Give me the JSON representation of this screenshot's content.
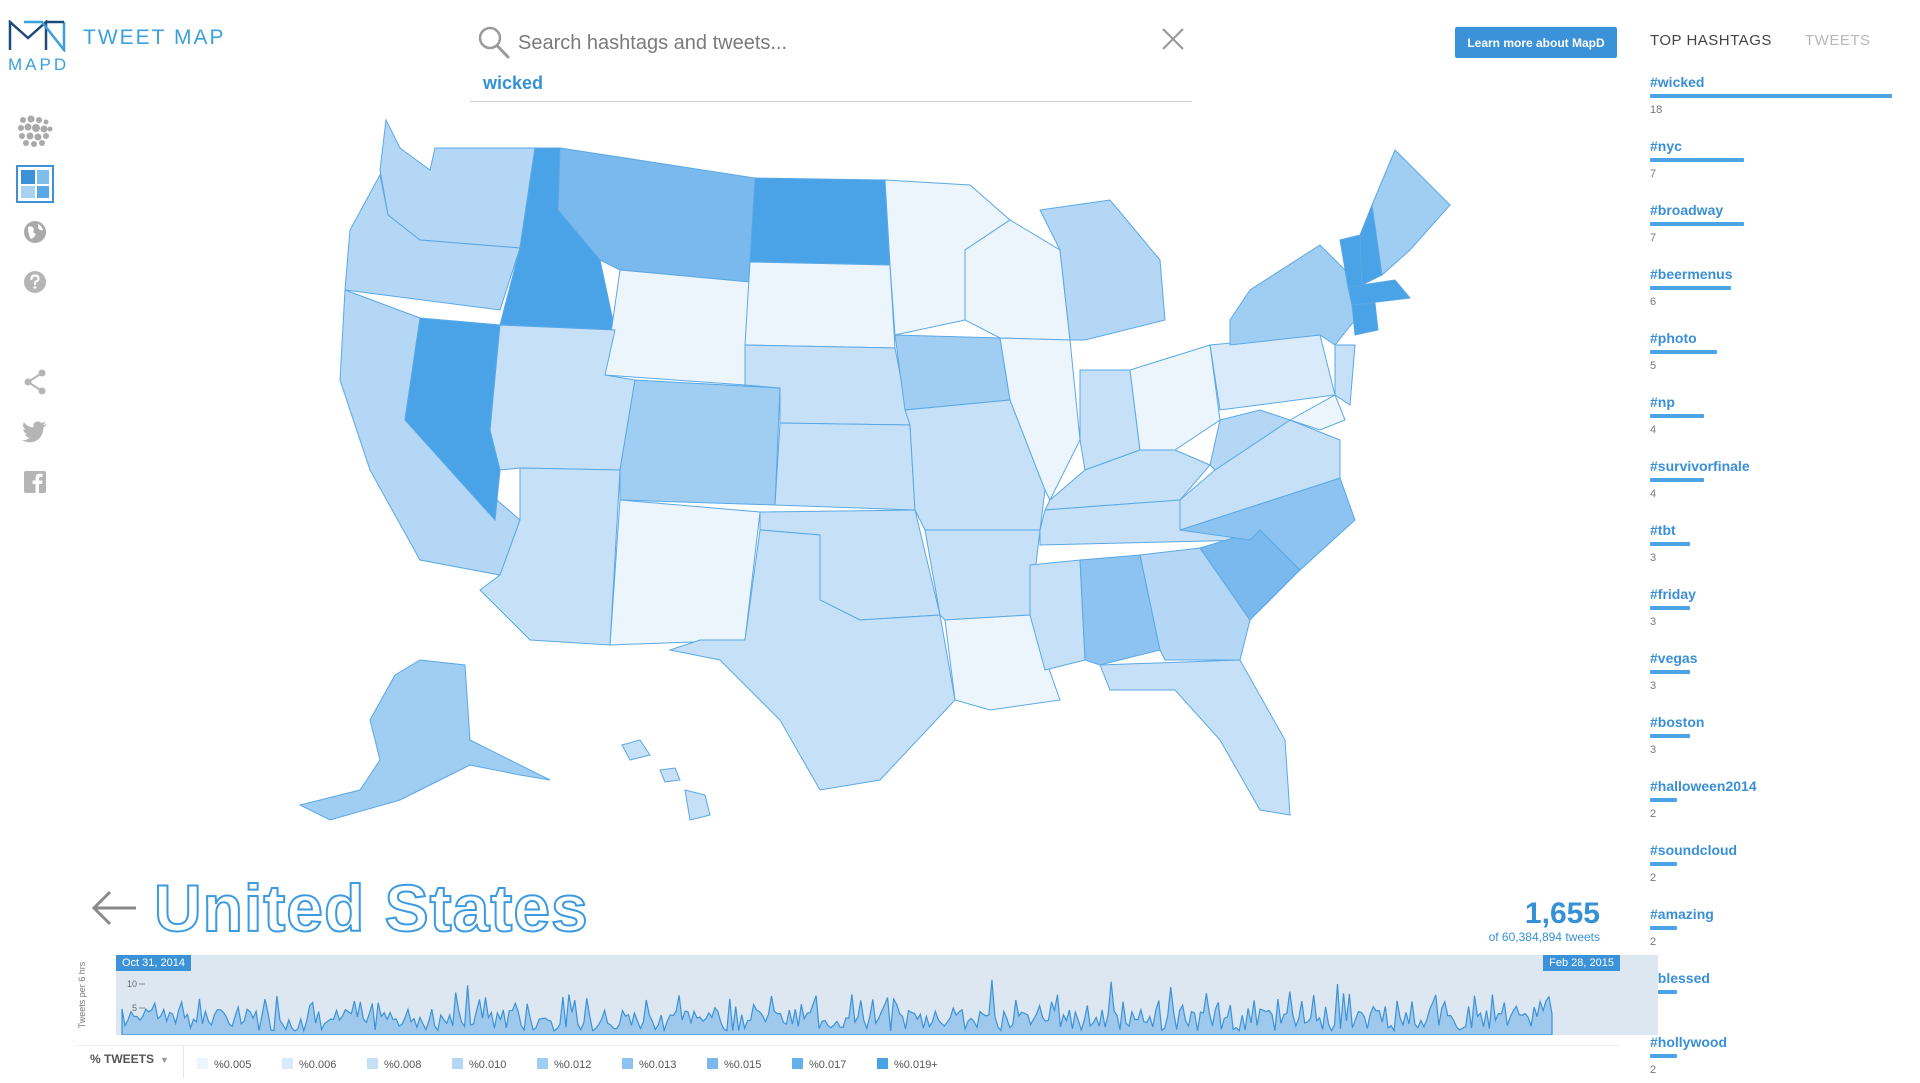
{
  "brand": {
    "logo_text": "MAPD",
    "app_title": "TWEET MAP"
  },
  "toolbar": {
    "items": [
      {
        "name": "points-view-icon",
        "label": "Points view"
      },
      {
        "name": "choropleth-view-icon",
        "label": "Choropleth view"
      },
      {
        "name": "world-icon",
        "label": "World"
      },
      {
        "name": "help-icon",
        "label": "Help"
      },
      {
        "name": "share-icon",
        "label": "Share"
      },
      {
        "name": "twitter-icon",
        "label": "Twitter"
      },
      {
        "name": "facebook-icon",
        "label": "Facebook"
      }
    ]
  },
  "search": {
    "placeholder": "Search hashtags and tweets...",
    "value": "",
    "active_term": "wicked"
  },
  "learn_more": {
    "label": "Learn more about MapD"
  },
  "panel": {
    "tabs": [
      {
        "label": "TOP HASHTAGS",
        "active": true
      },
      {
        "label": "TWEETS",
        "active": false
      }
    ],
    "hashtags": [
      {
        "tag": "#wicked",
        "count": "18",
        "value": 18
      },
      {
        "tag": "#nyc",
        "count": "7",
        "value": 7
      },
      {
        "tag": "#broadway",
        "count": "7",
        "value": 7
      },
      {
        "tag": "#beermenus",
        "count": "6",
        "value": 6
      },
      {
        "tag": "#photo",
        "count": "5",
        "value": 5
      },
      {
        "tag": "#np",
        "count": "4",
        "value": 4
      },
      {
        "tag": "#survivorfinale",
        "count": "4",
        "value": 4
      },
      {
        "tag": "#tbt",
        "count": "3",
        "value": 3
      },
      {
        "tag": "#friday",
        "count": "3",
        "value": 3
      },
      {
        "tag": "#vegas",
        "count": "3",
        "value": 3
      },
      {
        "tag": "#boston",
        "count": "3",
        "value": 3
      },
      {
        "tag": "#halloween2014",
        "count": "2",
        "value": 2
      },
      {
        "tag": "#soundcloud",
        "count": "2",
        "value": 2
      },
      {
        "tag": "#amazing",
        "count": "2",
        "value": 2
      },
      {
        "tag": "#blessed",
        "count": "2",
        "value": 2
      },
      {
        "tag": "#hollywood",
        "count": "2",
        "value": 2
      }
    ]
  },
  "region": {
    "title": "United States",
    "count": "1,655",
    "count_sub": "of 60,384,894 tweets"
  },
  "timeline": {
    "ylabel": "Tweets per 6 hrs",
    "ticks": [
      "10",
      "5"
    ],
    "start_date": "Oct 31, 2014",
    "end_date": "Feb 28, 2015"
  },
  "legend": {
    "selector": "% TWEETS",
    "items": [
      {
        "label": "%0.005",
        "color": "#edf5fc"
      },
      {
        "label": "%0.006",
        "color": "#d9ebfa"
      },
      {
        "label": "%0.008",
        "color": "#c6e1f7"
      },
      {
        "label": "%0.010",
        "color": "#b3d7f5"
      },
      {
        "label": "%0.012",
        "color": "#a0cdf2"
      },
      {
        "label": "%0.013",
        "color": "#8cc3f0"
      },
      {
        "label": "%0.015",
        "color": "#79b9ed"
      },
      {
        "label": "%0.017",
        "color": "#65afea"
      },
      {
        "label": "%0.019+",
        "color": "#4aa3e6"
      }
    ]
  },
  "colors": {
    "accent": "#3591d6",
    "map_stroke": "#5aa8e6",
    "timeline_bg": "#dde7f1"
  }
}
